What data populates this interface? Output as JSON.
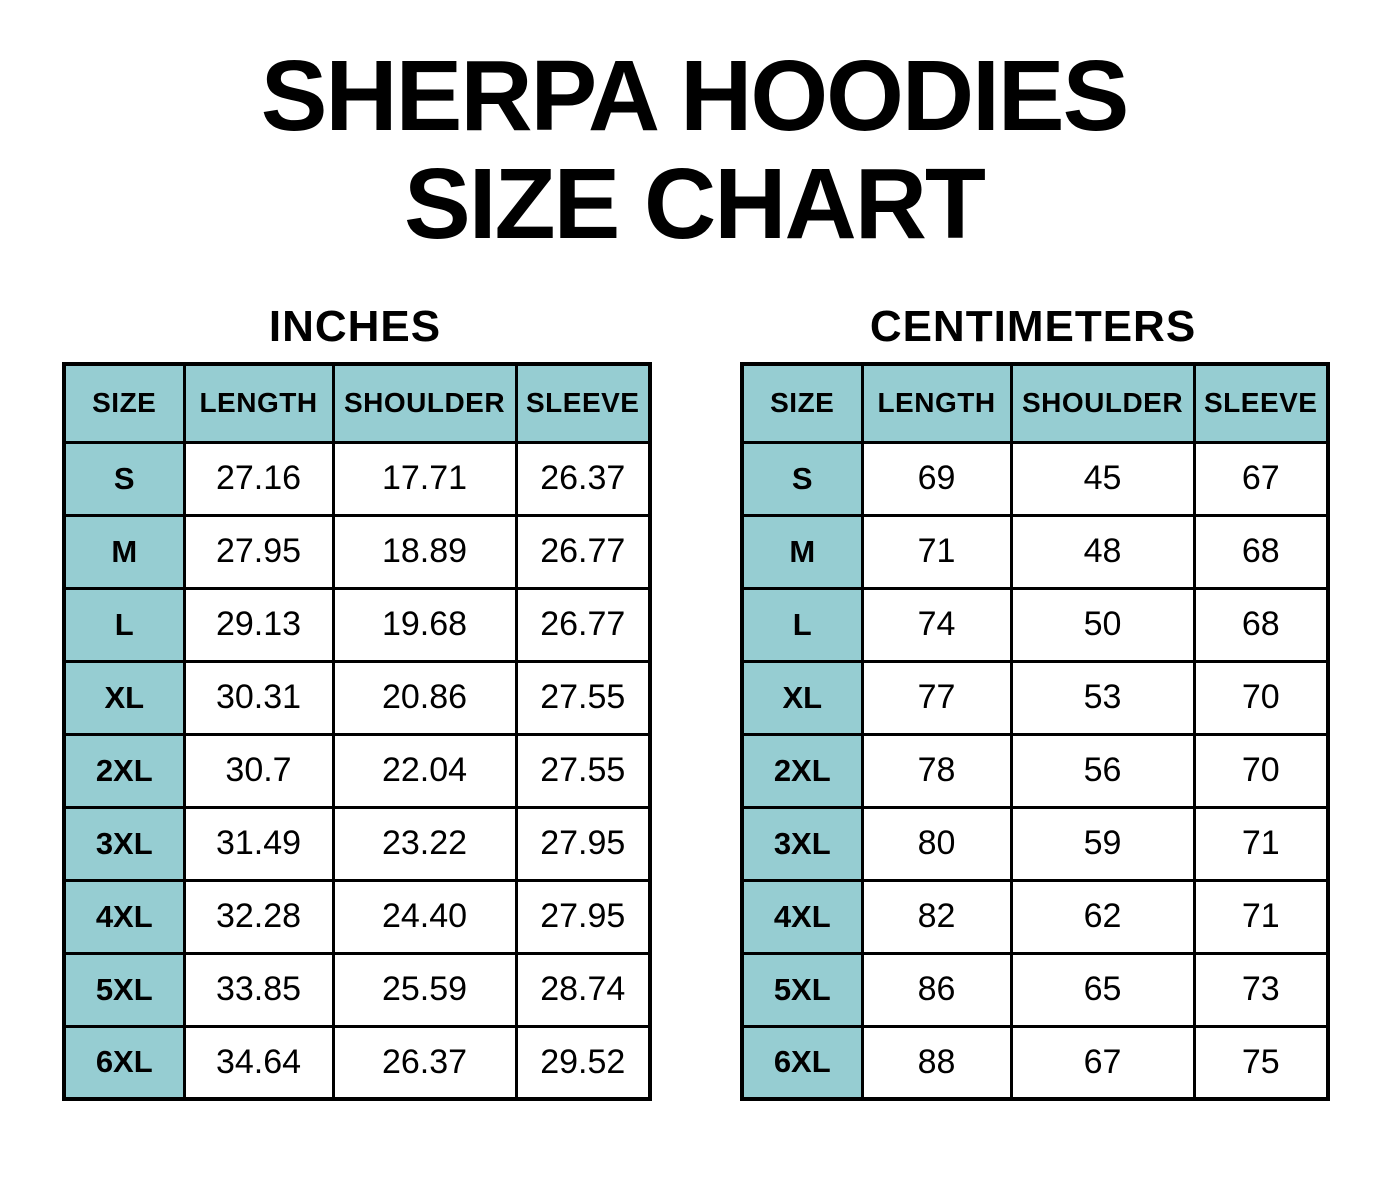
{
  "title": {
    "line1": "SHERPA HOODIES",
    "line2": "SIZE CHART"
  },
  "chart_data": [
    {
      "type": "table",
      "title": "INCHES",
      "columns": [
        "SIZE",
        "LENGTH",
        "SHOULDER",
        "SLEEVE"
      ],
      "rows": [
        [
          "S",
          "27.16",
          "17.71",
          "26.37"
        ],
        [
          "M",
          "27.95",
          "18.89",
          "26.77"
        ],
        [
          "L",
          "29.13",
          "19.68",
          "26.77"
        ],
        [
          "XL",
          "30.31",
          "20.86",
          "27.55"
        ],
        [
          "2XL",
          "30.7",
          "22.04",
          "27.55"
        ],
        [
          "3XL",
          "31.49",
          "23.22",
          "27.95"
        ],
        [
          "4XL",
          "32.28",
          "24.40",
          "27.95"
        ],
        [
          "5XL",
          "33.85",
          "25.59",
          "28.74"
        ],
        [
          "6XL",
          "34.64",
          "26.37",
          "29.52"
        ]
      ]
    },
    {
      "type": "table",
      "title": "CENTIMETERS",
      "columns": [
        "SIZE",
        "LENGTH",
        "SHOULDER",
        "SLEEVE"
      ],
      "rows": [
        [
          "S",
          "69",
          "45",
          "67"
        ],
        [
          "M",
          "71",
          "48",
          "68"
        ],
        [
          "L",
          "74",
          "50",
          "68"
        ],
        [
          "XL",
          "77",
          "53",
          "70"
        ],
        [
          "2XL",
          "78",
          "56",
          "70"
        ],
        [
          "3XL",
          "80",
          "59",
          "71"
        ],
        [
          "4XL",
          "82",
          "62",
          "71"
        ],
        [
          "5XL",
          "86",
          "65",
          "73"
        ],
        [
          "6XL",
          "88",
          "67",
          "75"
        ]
      ]
    }
  ],
  "colors": {
    "header_fill": "#96cdd2",
    "border": "#000000",
    "text": "#000000",
    "background": "#ffffff"
  }
}
